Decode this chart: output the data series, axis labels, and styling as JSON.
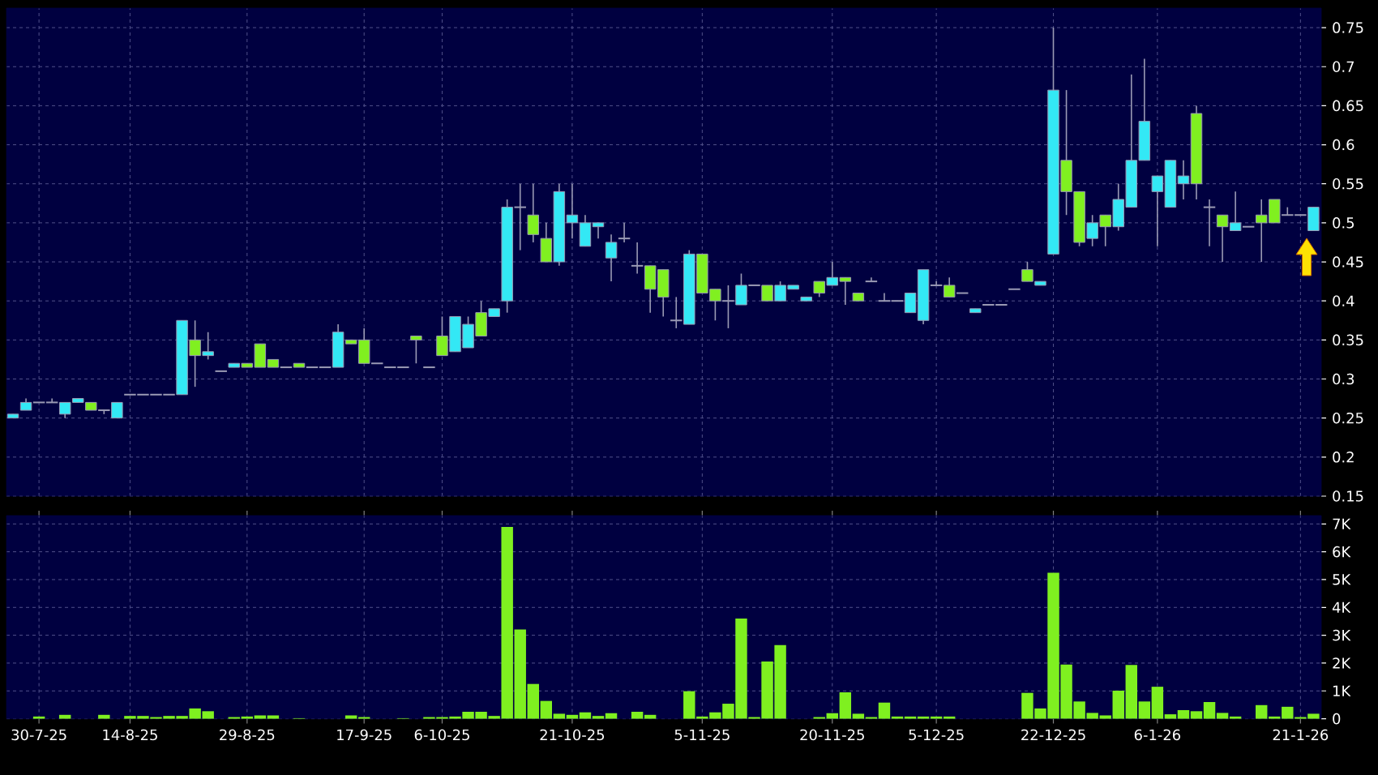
{
  "chart_data": [
    {
      "type": "candlestick",
      "categories": [
        null,
        null,
        null,
        null,
        null,
        null,
        null,
        null,
        null,
        null,
        null,
        null,
        null,
        null,
        null,
        null,
        null,
        null,
        null,
        null,
        null,
        null,
        null,
        null,
        null,
        null,
        null,
        null,
        null,
        null,
        null,
        null,
        null,
        null,
        null,
        null,
        null,
        null,
        null,
        null,
        null,
        null,
        null,
        null,
        null,
        null,
        null,
        null,
        null,
        null,
        null,
        null,
        null,
        null,
        null,
        null,
        null,
        null,
        null,
        null,
        null,
        null,
        null,
        null,
        null,
        null,
        null,
        null,
        null,
        null,
        null,
        null,
        null,
        null,
        null,
        null,
        null,
        null,
        null,
        null,
        null,
        null,
        null,
        null,
        null,
        null,
        null,
        null,
        null,
        null,
        null,
        null,
        null,
        null,
        null,
        null,
        null,
        null,
        null,
        null,
        null
      ],
      "ohlc": [
        [
          0.25,
          0.255,
          0.25,
          0.255
        ],
        [
          0.26,
          0.275,
          0.26,
          0.27
        ],
        [
          0.27,
          0.27,
          0.27,
          0.27
        ],
        [
          0.27,
          0.275,
          0.27,
          0.27
        ],
        [
          0.255,
          0.27,
          0.25,
          0.27
        ],
        [
          0.27,
          0.275,
          0.27,
          0.275
        ],
        [
          0.27,
          0.27,
          0.26,
          0.26
        ],
        [
          0.26,
          0.26,
          0.255,
          0.26
        ],
        [
          0.25,
          0.27,
          0.25,
          0.27
        ],
        [
          0.28,
          0.28,
          0.28,
          0.28
        ],
        [
          0.28,
          0.28,
          0.28,
          0.28
        ],
        [
          0.28,
          0.28,
          0.28,
          0.28
        ],
        [
          0.28,
          0.28,
          0.28,
          0.28
        ],
        [
          0.28,
          0.375,
          0.28,
          0.375
        ],
        [
          0.35,
          0.375,
          0.29,
          0.33
        ],
        [
          0.33,
          0.36,
          0.325,
          0.335
        ],
        [
          0.31,
          0.31,
          0.31,
          0.31
        ],
        [
          0.315,
          0.32,
          0.315,
          0.32
        ],
        [
          0.32,
          0.32,
          0.315,
          0.315
        ],
        [
          0.345,
          0.345,
          0.315,
          0.315
        ],
        [
          0.325,
          0.325,
          0.315,
          0.315
        ],
        [
          0.315,
          0.315,
          0.315,
          0.315
        ],
        [
          0.32,
          0.32,
          0.315,
          0.315
        ],
        [
          0.315,
          0.315,
          0.315,
          0.315
        ],
        [
          0.315,
          0.315,
          0.315,
          0.315
        ],
        [
          0.315,
          0.37,
          0.315,
          0.36
        ],
        [
          0.35,
          0.35,
          0.345,
          0.345
        ],
        [
          0.35,
          0.365,
          0.32,
          0.32
        ],
        [
          0.32,
          0.32,
          0.32,
          0.32
        ],
        [
          0.315,
          0.315,
          0.315,
          0.315
        ],
        [
          0.315,
          0.315,
          0.315,
          0.315
        ],
        [
          0.355,
          0.355,
          0.32,
          0.35
        ],
        [
          0.315,
          0.315,
          0.315,
          0.315
        ],
        [
          0.355,
          0.38,
          0.33,
          0.33
        ],
        [
          0.335,
          0.38,
          0.335,
          0.38
        ],
        [
          0.34,
          0.38,
          0.34,
          0.37
        ],
        [
          0.385,
          0.4,
          0.355,
          0.355
        ],
        [
          0.38,
          0.39,
          0.38,
          0.39
        ],
        [
          0.4,
          0.53,
          0.385,
          0.52
        ],
        [
          0.52,
          0.55,
          0.465,
          0.52
        ],
        [
          0.51,
          0.55,
          0.475,
          0.485
        ],
        [
          0.48,
          0.5,
          0.45,
          0.45
        ],
        [
          0.45,
          0.55,
          0.445,
          0.54
        ],
        [
          0.5,
          0.55,
          0.48,
          0.51
        ],
        [
          0.47,
          0.51,
          0.47,
          0.5
        ],
        [
          0.495,
          0.5,
          0.48,
          0.5
        ],
        [
          0.455,
          0.485,
          0.425,
          0.475
        ],
        [
          0.48,
          0.5,
          0.475,
          0.48
        ],
        [
          0.445,
          0.475,
          0.435,
          0.445
        ],
        [
          0.445,
          0.445,
          0.385,
          0.415
        ],
        [
          0.44,
          0.44,
          0.38,
          0.405
        ],
        [
          0.375,
          0.405,
          0.365,
          0.375
        ],
        [
          0.37,
          0.465,
          0.37,
          0.46
        ],
        [
          0.46,
          0.46,
          0.41,
          0.41
        ],
        [
          0.415,
          0.415,
          0.375,
          0.4
        ],
        [
          0.4,
          0.42,
          0.365,
          0.4
        ],
        [
          0.395,
          0.435,
          0.395,
          0.42
        ],
        [
          0.42,
          0.42,
          0.42,
          0.42
        ],
        [
          0.42,
          0.42,
          0.4,
          0.4
        ],
        [
          0.4,
          0.425,
          0.4,
          0.42
        ],
        [
          0.415,
          0.42,
          0.415,
          0.42
        ],
        [
          0.4,
          0.405,
          0.4,
          0.405
        ],
        [
          0.425,
          0.425,
          0.405,
          0.41
        ],
        [
          0.42,
          0.45,
          0.42,
          0.43
        ],
        [
          0.43,
          0.43,
          0.395,
          0.425
        ],
        [
          0.41,
          0.41,
          0.4,
          0.4
        ],
        [
          0.425,
          0.43,
          0.425,
          0.425
        ],
        [
          0.4,
          0.41,
          0.4,
          0.4
        ],
        [
          0.4,
          0.4,
          0.4,
          0.4
        ],
        [
          0.385,
          0.41,
          0.385,
          0.41
        ],
        [
          0.375,
          0.44,
          0.37,
          0.44
        ],
        [
          0.42,
          0.425,
          0.42,
          0.42
        ],
        [
          0.42,
          0.43,
          0.405,
          0.405
        ],
        [
          0.41,
          0.41,
          0.41,
          0.41
        ],
        [
          0.385,
          0.39,
          0.385,
          0.39
        ],
        [
          0.395,
          0.395,
          0.395,
          0.395
        ],
        [
          0.395,
          0.395,
          0.395,
          0.395
        ],
        [
          0.415,
          0.415,
          0.415,
          0.415
        ],
        [
          0.44,
          0.45,
          0.425,
          0.425
        ],
        [
          0.42,
          0.425,
          0.42,
          0.425
        ],
        [
          0.46,
          0.75,
          0.46,
          0.67
        ],
        [
          0.58,
          0.67,
          0.51,
          0.54
        ],
        [
          0.54,
          0.54,
          0.47,
          0.475
        ],
        [
          0.48,
          0.51,
          0.47,
          0.5
        ],
        [
          0.51,
          0.51,
          0.47,
          0.495
        ],
        [
          0.495,
          0.55,
          0.49,
          0.53
        ],
        [
          0.52,
          0.69,
          0.52,
          0.58
        ],
        [
          0.58,
          0.71,
          0.58,
          0.63
        ],
        [
          0.54,
          0.56,
          0.47,
          0.56
        ],
        [
          0.52,
          0.58,
          0.52,
          0.58
        ],
        [
          0.55,
          0.58,
          0.53,
          0.56
        ],
        [
          0.64,
          0.65,
          0.53,
          0.55
        ],
        [
          0.52,
          0.53,
          0.47,
          0.52
        ],
        [
          0.51,
          0.51,
          0.45,
          0.495
        ],
        [
          0.49,
          0.54,
          0.49,
          0.5
        ],
        [
          0.495,
          0.495,
          0.495,
          0.495
        ],
        [
          0.51,
          0.53,
          0.45,
          0.5
        ],
        [
          0.53,
          0.53,
          0.5,
          0.5
        ],
        [
          0.51,
          0.52,
          0.51,
          0.51
        ],
        [
          0.51,
          0.51,
          0.51,
          0.51
        ],
        [
          0.49,
          0.52,
          0.49,
          0.52
        ]
      ],
      "colors": [
        "#33e8f5",
        "#33e8f5",
        "#9a9ab4",
        "#9a9ab4",
        "#33e8f5",
        "#33e8f5",
        "#80f020",
        "#9a9ab4",
        "#33e8f5",
        "#9a9ab4",
        "#9a9ab4",
        "#9a9ab4",
        "#9a9ab4",
        "#33e8f5",
        "#80f020",
        "#33e8f5",
        "#9a9ab4",
        "#33e8f5",
        "#80f020",
        "#80f020",
        "#80f020",
        "#9a9ab4",
        "#80f020",
        "#9a9ab4",
        "#9a9ab4",
        "#33e8f5",
        "#80f020",
        "#80f020",
        "#9a9ab4",
        "#9a9ab4",
        "#9a9ab4",
        "#80f020",
        "#9a9ab4",
        "#80f020",
        "#33e8f5",
        "#33e8f5",
        "#80f020",
        "#33e8f5",
        "#33e8f5",
        "#9a9ab4",
        "#80f020",
        "#80f020",
        "#33e8f5",
        "#33e8f5",
        "#33e8f5",
        "#33e8f5",
        "#33e8f5",
        "#9a9ab4",
        "#9a9ab4",
        "#80f020",
        "#80f020",
        "#9a9ab4",
        "#33e8f5",
        "#80f020",
        "#80f020",
        "#9a9ab4",
        "#33e8f5",
        "#9a9ab4",
        "#80f020",
        "#33e8f5",
        "#33e8f5",
        "#33e8f5",
        "#80f020",
        "#33e8f5",
        "#80f020",
        "#80f020",
        "#9a9ab4",
        "#9a9ab4",
        "#9a9ab4",
        "#33e8f5",
        "#33e8f5",
        "#9a9ab4",
        "#80f020",
        "#9a9ab4",
        "#33e8f5",
        "#9a9ab4",
        "#9a9ab4",
        "#9a9ab4",
        "#80f020",
        "#33e8f5",
        "#33e8f5",
        "#80f020",
        "#80f020",
        "#33e8f5",
        "#80f020",
        "#33e8f5",
        "#33e8f5",
        "#33e8f5",
        "#33e8f5",
        "#33e8f5",
        "#33e8f5",
        "#80f020",
        "#9a9ab4",
        "#80f020",
        "#33e8f5",
        "#9a9ab4",
        "#80f020",
        "#80f020",
        "#9a9ab4",
        "#9a9ab4",
        "#33e8f5"
      ],
      "ylim": [
        0.15,
        0.775
      ],
      "yticks": [
        0.15,
        0.2,
        0.25,
        0.3,
        0.35,
        0.4,
        0.45,
        0.5,
        0.55,
        0.6,
        0.65,
        0.7,
        0.75
      ],
      "grid": true,
      "tick_labels": "y"
    },
    {
      "type": "bar",
      "categories": [
        null,
        null,
        "30-7-25",
        null,
        null,
        null,
        null,
        null,
        null,
        "14-8-25",
        null,
        null,
        null,
        null,
        null,
        null,
        null,
        null,
        "29-8-25",
        null,
        null,
        null,
        null,
        null,
        null,
        null,
        null,
        "17-9-25",
        null,
        null,
        null,
        null,
        null,
        "6-10-25",
        null,
        null,
        null,
        null,
        null,
        null,
        null,
        null,
        null,
        "21-10-25",
        null,
        null,
        null,
        null,
        null,
        null,
        null,
        null,
        null,
        "5-11-25",
        null,
        null,
        null,
        null,
        null,
        null,
        null,
        null,
        null,
        "20-11-25",
        null,
        null,
        null,
        null,
        null,
        null,
        null,
        "5-12-25",
        null,
        null,
        null,
        null,
        null,
        null,
        null,
        null,
        "22-12-25",
        null,
        null,
        null,
        null,
        null,
        null,
        null,
        "6-1-26",
        null,
        null,
        null,
        null,
        null,
        null,
        null,
        null,
        null,
        null,
        "21-1-26",
        null
      ],
      "values": [
        0,
        0,
        80,
        0,
        140,
        0,
        0,
        140,
        0,
        100,
        100,
        60,
        100,
        100,
        370,
        270,
        0,
        60,
        80,
        120,
        120,
        0,
        20,
        0,
        0,
        0,
        120,
        60,
        0,
        0,
        20,
        0,
        60,
        60,
        80,
        250,
        250,
        100,
        6890,
        3210,
        1250,
        640,
        180,
        140,
        230,
        100,
        200,
        0,
        250,
        140,
        0,
        0,
        990,
        80,
        230,
        540,
        3600,
        60,
        2060,
        2650,
        0,
        0,
        60,
        200,
        950,
        180,
        60,
        580,
        80,
        80,
        80,
        80,
        80,
        0,
        0,
        0,
        0,
        0,
        930,
        370,
        5250,
        1950,
        620,
        210,
        120,
        1010,
        1930,
        620,
        1150,
        160,
        310,
        270,
        600,
        210,
        80,
        0,
        490,
        80,
        430,
        60,
        180
      ],
      "color": "#7ff020",
      "ylim": [
        0,
        7300
      ],
      "yticks": [
        0,
        {
          "value": 1000,
          "label": "1K"
        },
        {
          "value": 2000,
          "label": "2K"
        },
        {
          "value": 3000,
          "label": "3K"
        },
        {
          "value": 4000,
          "label": "4K"
        },
        {
          "value": 5000,
          "label": "5K"
        },
        {
          "value": 6000,
          "label": "6K"
        },
        {
          "value": 7000,
          "label": "7K"
        }
      ],
      "grid": true
    }
  ]
}
